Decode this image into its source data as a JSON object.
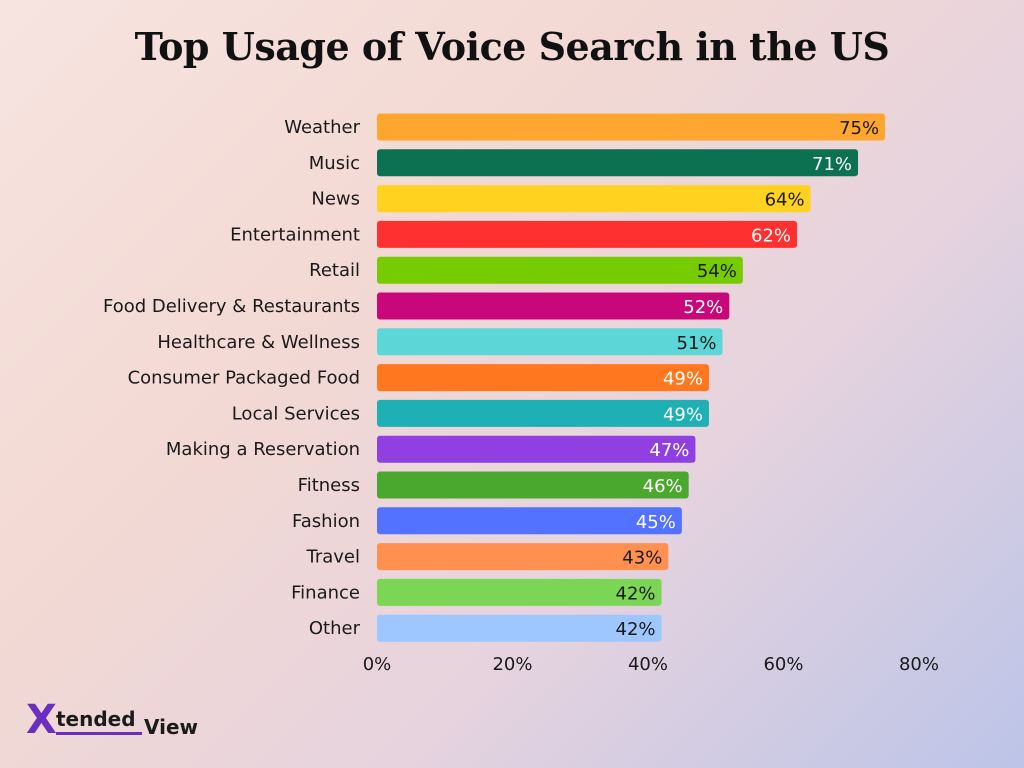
{
  "chart_data": {
    "type": "bar",
    "orientation": "horizontal",
    "title": "Top Usage of Voice Search in the US",
    "categories": [
      "Weather",
      "Music",
      "News",
      "Entertainment",
      "Retail",
      "Food Delivery & Restaurants",
      "Healthcare & Wellness",
      "Consumer Packaged Food",
      "Local Services",
      "Making a Reservation",
      "Fitness",
      "Fashion",
      "Travel",
      "Finance",
      "Other"
    ],
    "values": [
      75,
      71,
      64,
      62,
      54,
      52,
      51,
      49,
      49,
      47,
      46,
      45,
      43,
      42,
      42
    ],
    "value_labels": [
      "75%",
      "71%",
      "64%",
      "62%",
      "54%",
      "52%",
      "51%",
      "49%",
      "49%",
      "47%",
      "46%",
      "45%",
      "43%",
      "42%",
      "42%"
    ],
    "colors": [
      "#FFA630",
      "#0B7150",
      "#FFD21F",
      "#FF3030",
      "#76CC00",
      "#C8087A",
      "#5CD6D6",
      "#FF7820",
      "#1EB0B4",
      "#9040E0",
      "#4BA82E",
      "#5272FF",
      "#FF9050",
      "#7CD655",
      "#9EC6FF"
    ],
    "label_colors": [
      "#1a1a1a",
      "#ffffff",
      "#1a1a1a",
      "#ffffff",
      "#1a1a1a",
      "#ffffff",
      "#1a1a1a",
      "#ffffff",
      "#ffffff",
      "#ffffff",
      "#ffffff",
      "#ffffff",
      "#1a1a1a",
      "#1a1a1a",
      "#1a1a1a"
    ],
    "xlim": [
      0,
      80
    ],
    "xticks": [
      0,
      20,
      40,
      60,
      80
    ],
    "xtick_labels": [
      "0%",
      "20%",
      "40%",
      "60%",
      "80%"
    ],
    "xlabel": "",
    "ylabel": "",
    "grid": false,
    "legend": "none"
  },
  "brand": {
    "logo_parts": {
      "x": "X",
      "tended": "tended",
      "view": "View"
    },
    "accent": "#6b2fbf"
  }
}
